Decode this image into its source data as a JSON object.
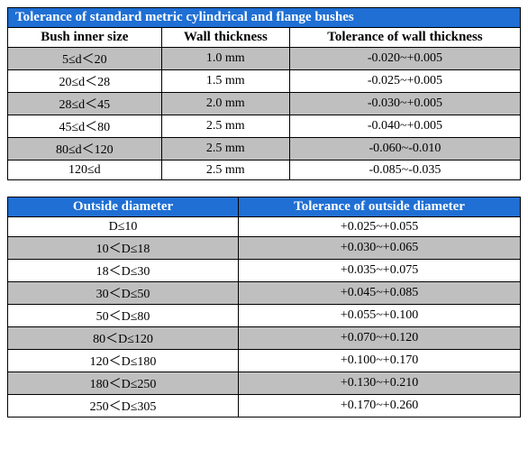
{
  "colors": {
    "header_bg": "#1f6fd4",
    "alt_row_bg": "#bfbfbf",
    "border": "#000000",
    "text": "#000000"
  },
  "table1": {
    "title": "Tolerance of standard metric cylindrical and flange bushes",
    "columns": [
      "Bush inner size",
      "Wall thickness",
      "Tolerance of wall thickness"
    ],
    "col_widths": [
      "30%",
      "25%",
      "45%"
    ],
    "rows": [
      [
        "5≤d＜20",
        "1.0 mm",
        "-0.020~+0.005"
      ],
      [
        "20≤d＜28",
        "1.5 mm",
        "-0.025~+0.005"
      ],
      [
        "28≤d＜45",
        "2.0 mm",
        "-0.030~+0.005"
      ],
      [
        "45≤d＜80",
        "2.5 mm",
        "-0.040~+0.005"
      ],
      [
        "80≤d＜120",
        "2.5 mm",
        "-0.060~-0.010"
      ],
      [
        "120≤d",
        "2.5 mm",
        "-0.085~-0.035"
      ]
    ]
  },
  "table2": {
    "columns": [
      "Outside diameter",
      "Tolerance of outside diameter"
    ],
    "col_widths": [
      "45%",
      "55%"
    ],
    "rows": [
      [
        "D≤10",
        "+0.025~+0.055"
      ],
      [
        "10＜D≤18",
        "+0.030~+0.065"
      ],
      [
        "18＜D≤30",
        "+0.035~+0.075"
      ],
      [
        "30＜D≤50",
        "+0.045~+0.085"
      ],
      [
        "50＜D≤80",
        "+0.055~+0.100"
      ],
      [
        "80＜D≤120",
        "+0.070~+0.120"
      ],
      [
        "120＜D≤180",
        "+0.100~+0.170"
      ],
      [
        "180＜D≤250",
        "+0.130~+0.210"
      ],
      [
        "250＜D≤305",
        "+0.170~+0.260"
      ]
    ]
  }
}
